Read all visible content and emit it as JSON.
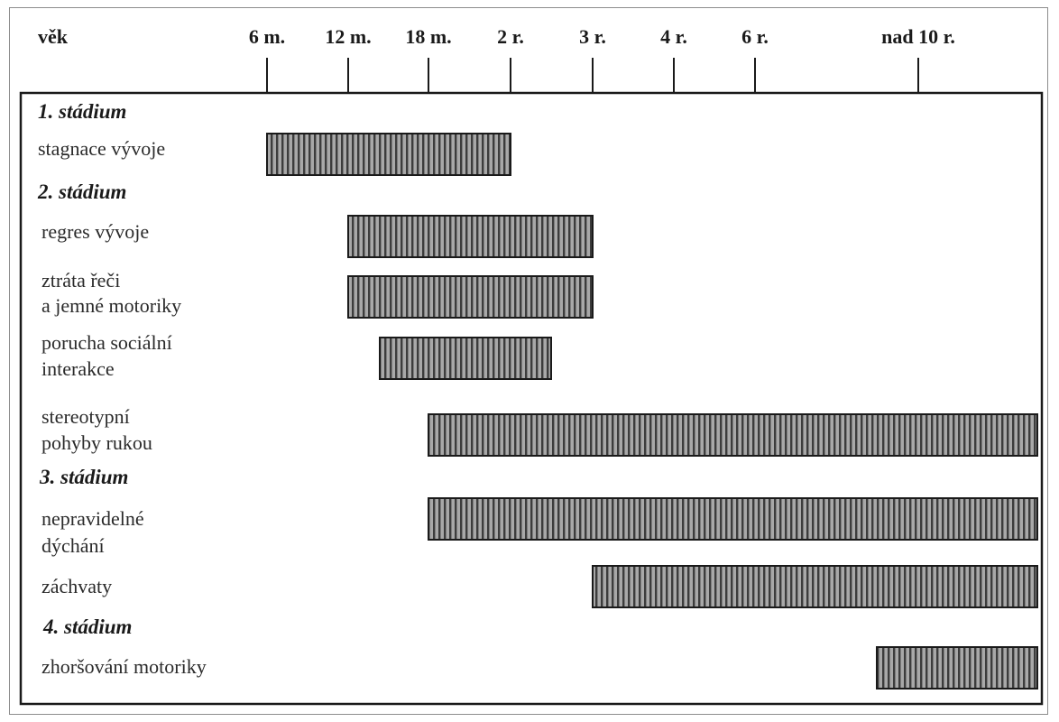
{
  "chart_data": {
    "type": "gantt",
    "axis_label": "věk",
    "ticks": [
      "6 m.",
      "12 m.",
      "18 m.",
      "2 r.",
      "3 r.",
      "4 r.",
      "6 r.",
      "nad 10 r."
    ],
    "stages": [
      {
        "title": "1. stádium",
        "rows": [
          {
            "label": [
              "stagnace vývoje"
            ],
            "start": "6 m.",
            "end": "2 r."
          }
        ]
      },
      {
        "title": "2. stádium",
        "rows": [
          {
            "label": [
              "regres vývoje"
            ],
            "start": "12 m.",
            "end": "3 r."
          },
          {
            "label": [
              "ztráta řeči",
              "a jemné motoriky"
            ],
            "start": "12 m.",
            "end": "3 r."
          },
          {
            "label": [
              "porucha sociální",
              "interakce"
            ],
            "start": "15 m.",
            "end": "2,5 r."
          },
          {
            "label": [
              "stereotypní",
              "pohyby rukou"
            ],
            "start": "18 m.",
            "end": "nad 10 r."
          }
        ]
      },
      {
        "title": "3. stádium",
        "rows": [
          {
            "label": [
              "nepravidelné",
              "dýchání"
            ],
            "start": "18 m.",
            "end": "nad 10 r."
          },
          {
            "label": [
              "záchvaty"
            ],
            "start": "3 r.",
            "end": "nad 10 r."
          }
        ]
      },
      {
        "title": "4. stádium",
        "rows": [
          {
            "label": [
              "zhoršování motoriky"
            ],
            "start": "9 r.",
            "end": "nad 10 r."
          }
        ]
      }
    ],
    "colors": {
      "bar_fill": "#9a9a9a",
      "bar_stripe": "#3a3a3a",
      "border": "#1a1a1a"
    }
  }
}
